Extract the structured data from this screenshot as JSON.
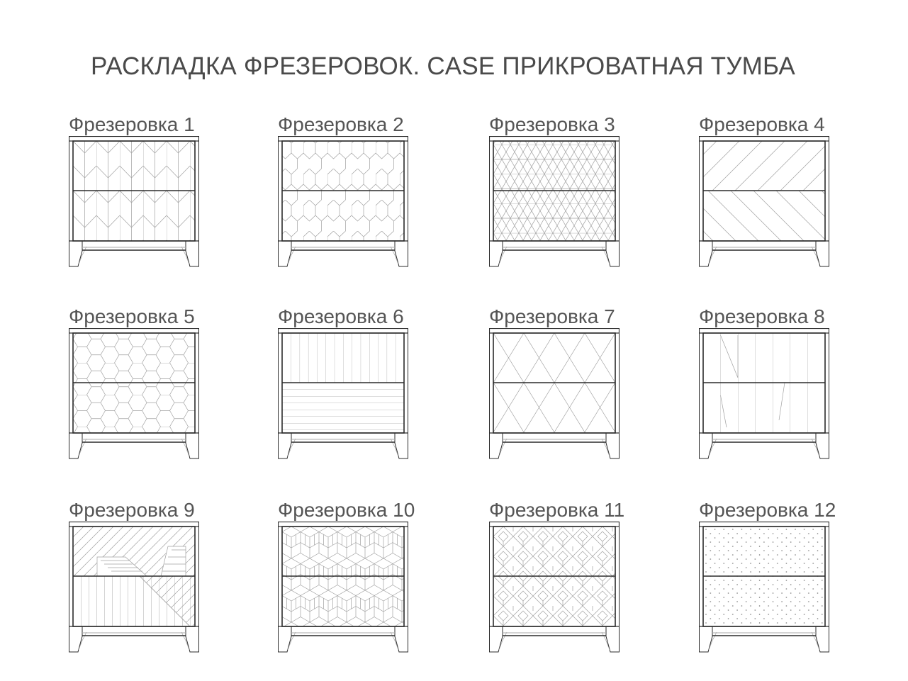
{
  "title": "РАСКЛАДКА ФРЕЗЕРОВОК. CASE ПРИКРОВАТНАЯ ТУМБА",
  "colors": {
    "frame": "#2b2b2b",
    "pattern": "#a0a0a0",
    "text": "#4a4a4a"
  },
  "items": [
    {
      "label": "Фрезеровка 1",
      "pattern": "herringbone"
    },
    {
      "label": "Фрезеровка 2",
      "pattern": "elongated-hexagon"
    },
    {
      "label": "Фрезеровка 3",
      "pattern": "triangle-star"
    },
    {
      "label": "Фрезеровка 4",
      "pattern": "diagonal-chevron"
    },
    {
      "label": "Фрезеровка 5",
      "pattern": "hexagon"
    },
    {
      "label": "Фрезеровка 6",
      "pattern": "vertical-horizontal-lines"
    },
    {
      "label": "Фрезеровка 7",
      "pattern": "diamond"
    },
    {
      "label": "Фрезеровка 8",
      "pattern": "vertical-lines-diagonals"
    },
    {
      "label": "Фрезеровка 9",
      "pattern": "diagonal-strips"
    },
    {
      "label": "Фрезеровка 10",
      "pattern": "isometric-cubes"
    },
    {
      "label": "Фрезеровка 11",
      "pattern": "nested-diamonds"
    },
    {
      "label": "Фрезеровка 12",
      "pattern": "dots"
    }
  ]
}
